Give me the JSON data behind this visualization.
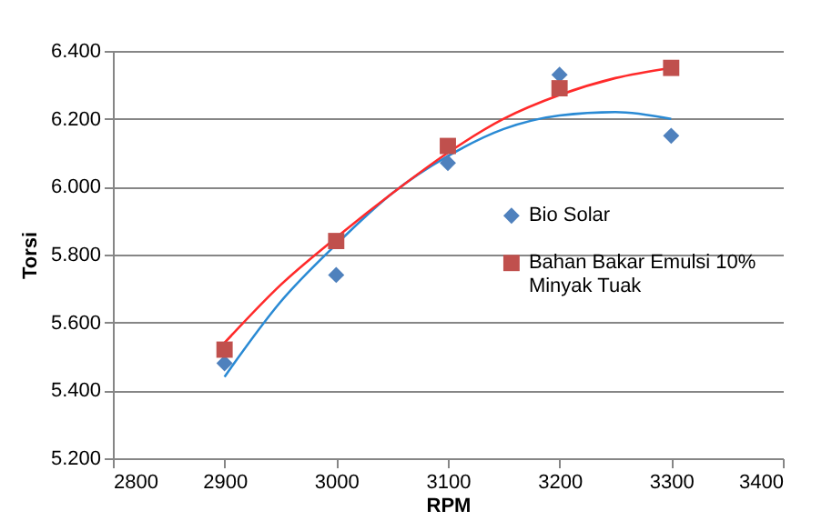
{
  "chart_data": {
    "type": "scatter",
    "xlabel": "RPM",
    "ylabel": "Torsi",
    "xlim": [
      2800,
      3400
    ],
    "xticks": [
      2800,
      2900,
      3000,
      3100,
      3200,
      3300,
      3400
    ],
    "ylim": [
      5.2,
      6.4
    ],
    "yticks": [
      {
        "value": 5.2,
        "label": "5.200"
      },
      {
        "value": 5.4,
        "label": "5.400"
      },
      {
        "value": 5.6,
        "label": "5.600"
      },
      {
        "value": 5.8,
        "label": "5.800"
      },
      {
        "value": 6.0,
        "label": "6.000"
      },
      {
        "value": 6.2,
        "label": "6.200"
      },
      {
        "value": 6.4,
        "label": "6.400"
      }
    ],
    "grid": "y",
    "legend": "right",
    "series": [
      {
        "name": "Bio Solar",
        "color": "#4f81bd",
        "marker": "diamond",
        "x": [
          2900,
          3000,
          3100,
          3200,
          3300
        ],
        "values": [
          5.48,
          5.74,
          6.07,
          6.33,
          6.15
        ]
      },
      {
        "name": "Bahan Bakar Emulsi 10% Minyak Tuak",
        "color": "#c0504d",
        "marker": "square",
        "x": [
          2900,
          3000,
          3100,
          3200,
          3300
        ],
        "values": [
          5.52,
          5.84,
          6.12,
          6.29,
          6.35
        ]
      },
      {
        "type": "line",
        "color": "#2a8ad4",
        "x": [
          2900,
          2950,
          3000,
          3050,
          3100,
          3150,
          3200,
          3250,
          3300
        ],
        "values": [
          5.44,
          5.66,
          5.83,
          5.98,
          6.09,
          6.17,
          6.21,
          6.22,
          6.2
        ]
      },
      {
        "type": "line",
        "color": "#ff2a2a",
        "x": [
          2900,
          2950,
          3000,
          3050,
          3100,
          3150,
          3200,
          3250,
          3300
        ],
        "values": [
          5.54,
          5.71,
          5.85,
          5.98,
          6.1,
          6.2,
          6.27,
          6.32,
          6.35
        ]
      }
    ]
  }
}
